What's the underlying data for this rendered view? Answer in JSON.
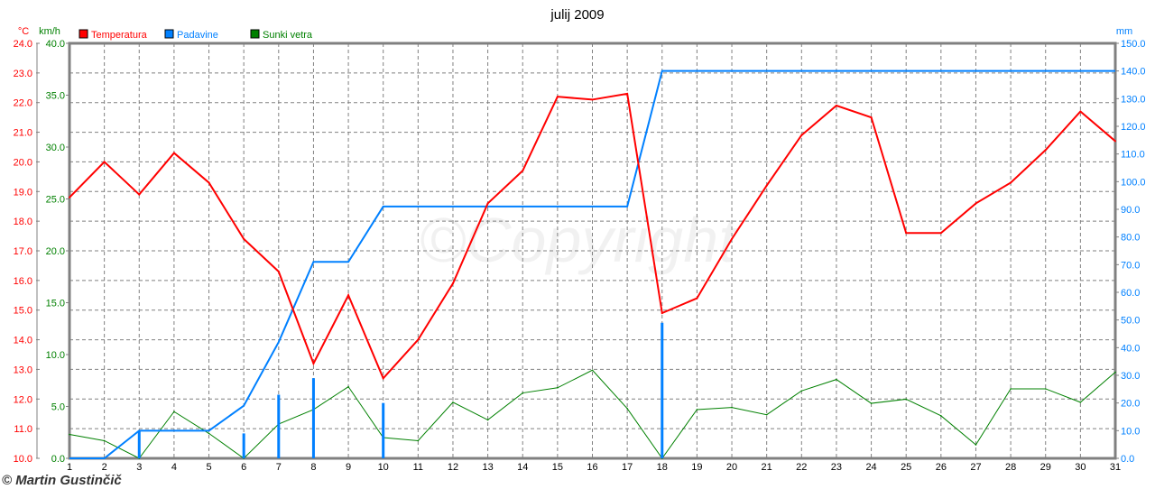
{
  "chart_data": {
    "type": "line",
    "title": "julij 2009",
    "x": [
      1,
      2,
      3,
      4,
      5,
      6,
      7,
      8,
      9,
      10,
      11,
      12,
      13,
      14,
      15,
      16,
      17,
      18,
      19,
      20,
      21,
      22,
      23,
      24,
      25,
      26,
      27,
      28,
      29,
      30,
      31
    ],
    "axes": {
      "temperature": {
        "unit": "°C",
        "range": [
          10,
          24
        ],
        "ticks": [
          "10.0",
          "11.0",
          "12.0",
          "13.0",
          "14.0",
          "15.0",
          "16.0",
          "17.0",
          "18.0",
          "19.0",
          "20.0",
          "21.0",
          "22.0",
          "23.0",
          "24.0"
        ],
        "color": "#ff0000"
      },
      "wind": {
        "unit": "km/h",
        "range": [
          0,
          40
        ],
        "ticks": [
          "0.0",
          "5.0",
          "10.0",
          "15.0",
          "20.0",
          "25.0",
          "30.0",
          "35.0",
          "40.0"
        ],
        "color": "#008000"
      },
      "precipitation": {
        "unit": "mm",
        "range": [
          0,
          150
        ],
        "ticks": [
          "0.0",
          "10.0",
          "20.0",
          "30.0",
          "40.0",
          "50.0",
          "60.0",
          "70.0",
          "80.0",
          "90.0",
          "100.0",
          "110.0",
          "120.0",
          "130.0",
          "140.0",
          "150.0"
        ],
        "color": "#0080ff"
      }
    },
    "grid": true,
    "legend_placement": "top-left",
    "series": [
      {
        "name": "Temperatura",
        "axis": "temperature",
        "color": "#ff0000",
        "values": [
          18.8,
          20.0,
          18.9,
          20.3,
          19.3,
          17.4,
          16.3,
          13.2,
          15.5,
          12.7,
          14.0,
          15.9,
          18.6,
          19.7,
          22.2,
          22.1,
          22.3,
          14.9,
          15.4,
          17.4,
          19.2,
          20.9,
          21.9,
          21.5,
          17.6,
          17.6,
          18.6,
          19.3,
          20.4,
          21.7,
          20.7
        ]
      },
      {
        "name": "Padavine",
        "axis": "precipitation",
        "color": "#0080ff",
        "cumulative": [
          0,
          0,
          10,
          10,
          10,
          19,
          42,
          71,
          71,
          91,
          91,
          91,
          91,
          91,
          91,
          91,
          91,
          140,
          140,
          140,
          140,
          140,
          140,
          140,
          140,
          140,
          140,
          140,
          140,
          140,
          140
        ],
        "daily": [
          0,
          0,
          10,
          0,
          0,
          9,
          23,
          29,
          0,
          20,
          0,
          0,
          0,
          0,
          0,
          0,
          0,
          49,
          0,
          0,
          0,
          0,
          0,
          0,
          0,
          0,
          0,
          0,
          0,
          0,
          0
        ]
      },
      {
        "name": "Sunki vetra",
        "axis": "wind",
        "color": "#008000",
        "values": [
          2.3,
          1.7,
          0.0,
          4.5,
          2.4,
          0.0,
          3.3,
          4.7,
          6.9,
          2.0,
          1.7,
          5.4,
          3.7,
          6.3,
          6.8,
          8.5,
          4.8,
          0.0,
          4.7,
          4.9,
          4.2,
          6.5,
          7.6,
          5.3,
          5.7,
          4.1,
          1.3,
          6.7,
          6.7,
          5.4,
          8.3
        ]
      }
    ],
    "watermark": "©Copyright",
    "credit": "© Martin Gustinčič"
  }
}
